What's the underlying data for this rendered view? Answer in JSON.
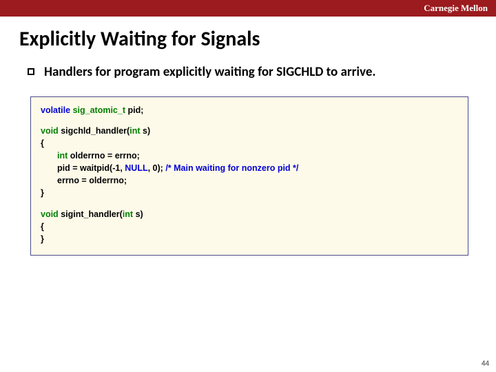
{
  "header": {
    "brand": "Carnegie Mellon"
  },
  "title": "Explicitly Waiting for Signals",
  "bullet": "Handlers for program explicitly waiting for SIGCHLD to arrive.",
  "code": {
    "decl": {
      "kw_volatile": "volatile",
      "type": "sig_atomic_t",
      "var": "pid",
      "semi": ";"
    },
    "fn1": {
      "kw_void": "void",
      "name": "sigchld_handler",
      "paren_open": "(",
      "kw_int": "int",
      "param": "s",
      "paren_close": ")",
      "brace_open": "{",
      "l1a": "int",
      "l1b": " olderrno = errno;",
      "l2a": "pid = waitpid(-1, ",
      "l2_null": "NULL",
      "l2b": ", 0); ",
      "l2_comment": "/* Main waiting for nonzero pid */",
      "l3": "errno = olderrno;",
      "brace_close": "}"
    },
    "fn2": {
      "kw_void": "void",
      "name": "sigint_handler",
      "paren_open": "(",
      "kw_int": "int",
      "param": "s",
      "paren_close": ")",
      "brace_open": "{",
      "brace_close": "}"
    }
  },
  "page_number": "44",
  "colors": {
    "header_bg": "#9b1b1e",
    "code_bg": "#fdfae9",
    "code_border": "#4a4a8a",
    "kw_green": "#008000",
    "kw_blue": "#0000d0"
  }
}
